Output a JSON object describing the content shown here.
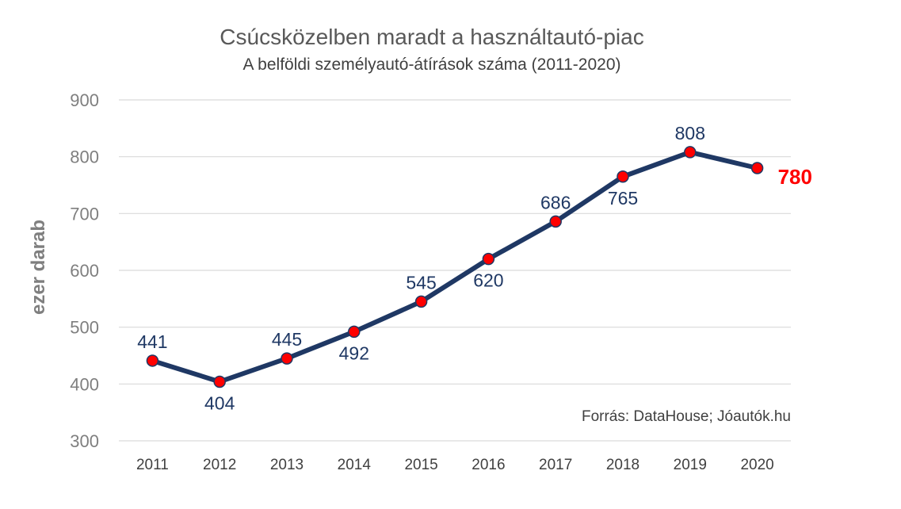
{
  "chart_data": {
    "type": "line",
    "title": "Csúcsközelben maradt a használtautó-piac",
    "subtitle": "A belföldi személyautó-átírások száma (2011-2020)",
    "xlabel": "",
    "ylabel": "ezer darab",
    "x": [
      "2011",
      "2012",
      "2013",
      "2014",
      "2015",
      "2016",
      "2017",
      "2018",
      "2019",
      "2020"
    ],
    "series": [
      {
        "values": [
          441,
          404,
          445,
          492,
          545,
          620,
          686,
          765,
          808,
          780
        ]
      }
    ],
    "data_labels": [
      "441",
      "404",
      "445",
      "492",
      "545",
      "620",
      "686",
      "765",
      "808",
      "780"
    ],
    "yticks": [
      "300",
      "400",
      "500",
      "600",
      "700",
      "800",
      "900"
    ],
    "ylim": [
      300,
      900
    ],
    "grid": true,
    "legend": "none",
    "line_color": "#1f3864",
    "marker_color": "#ff0000",
    "highlight_label_color": "#ff0000",
    "source": "Forrás: DataHouse; Jóautók.hu"
  }
}
